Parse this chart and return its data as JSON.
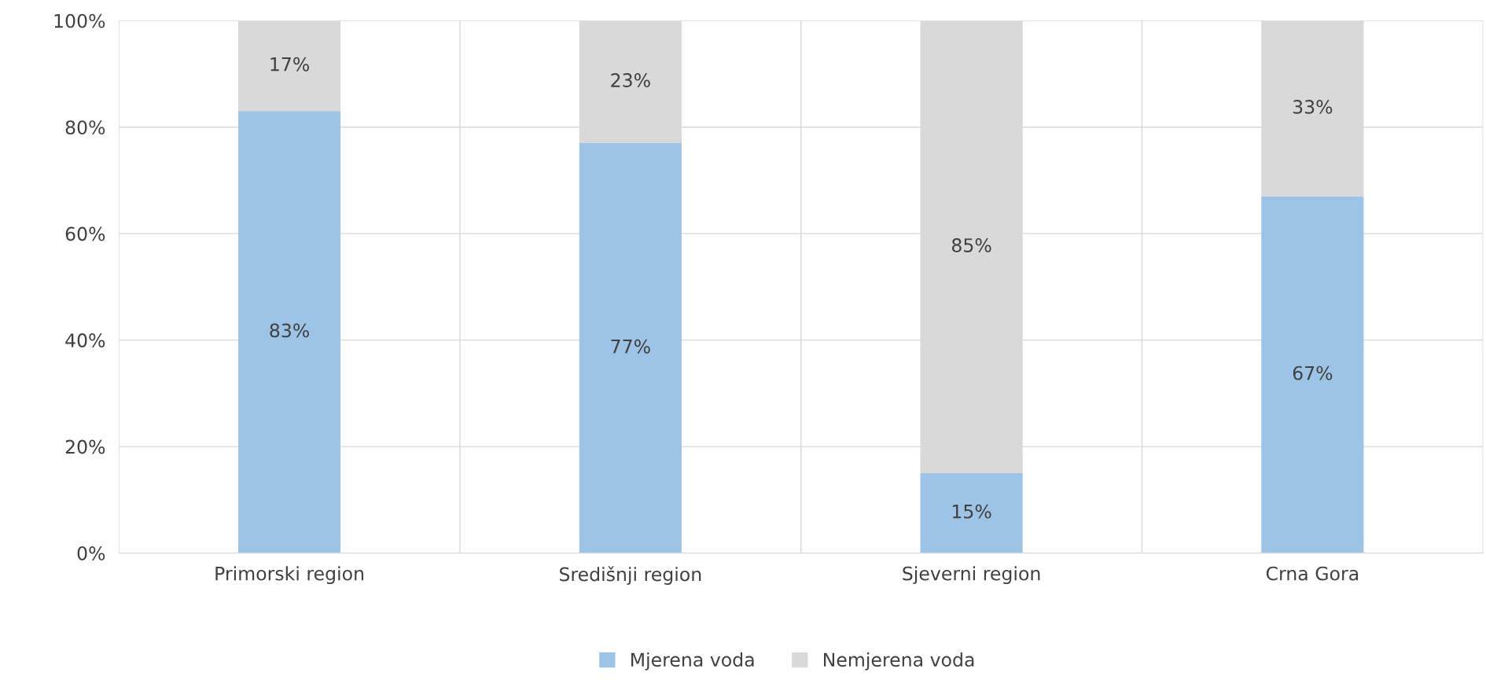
{
  "chart_data": {
    "type": "bar",
    "stacked": true,
    "categories": [
      "Primorski region",
      "Središnji region",
      "Sjeverni region",
      "Crna Gora"
    ],
    "series": [
      {
        "name": "Mjerena voda",
        "color": "#9dc3e6",
        "values": [
          83,
          77,
          15,
          67
        ],
        "value_labels": [
          "83%",
          "77%",
          "15%",
          "67%"
        ]
      },
      {
        "name": "Nemjerena voda",
        "color": "#d9d9d9",
        "values": [
          17,
          23,
          85,
          33
        ],
        "value_labels": [
          "17%",
          "23%",
          "85%",
          "33%"
        ]
      }
    ],
    "ylim": [
      0,
      100
    ],
    "yticks": [
      {
        "value": 0,
        "label": "0%"
      },
      {
        "value": 20,
        "label": "20%"
      },
      {
        "value": 40,
        "label": "40%"
      },
      {
        "value": 60,
        "label": "60%"
      },
      {
        "value": 80,
        "label": "80%"
      },
      {
        "value": 100,
        "label": "100%"
      }
    ],
    "grid": true,
    "legend": "bottom"
  }
}
